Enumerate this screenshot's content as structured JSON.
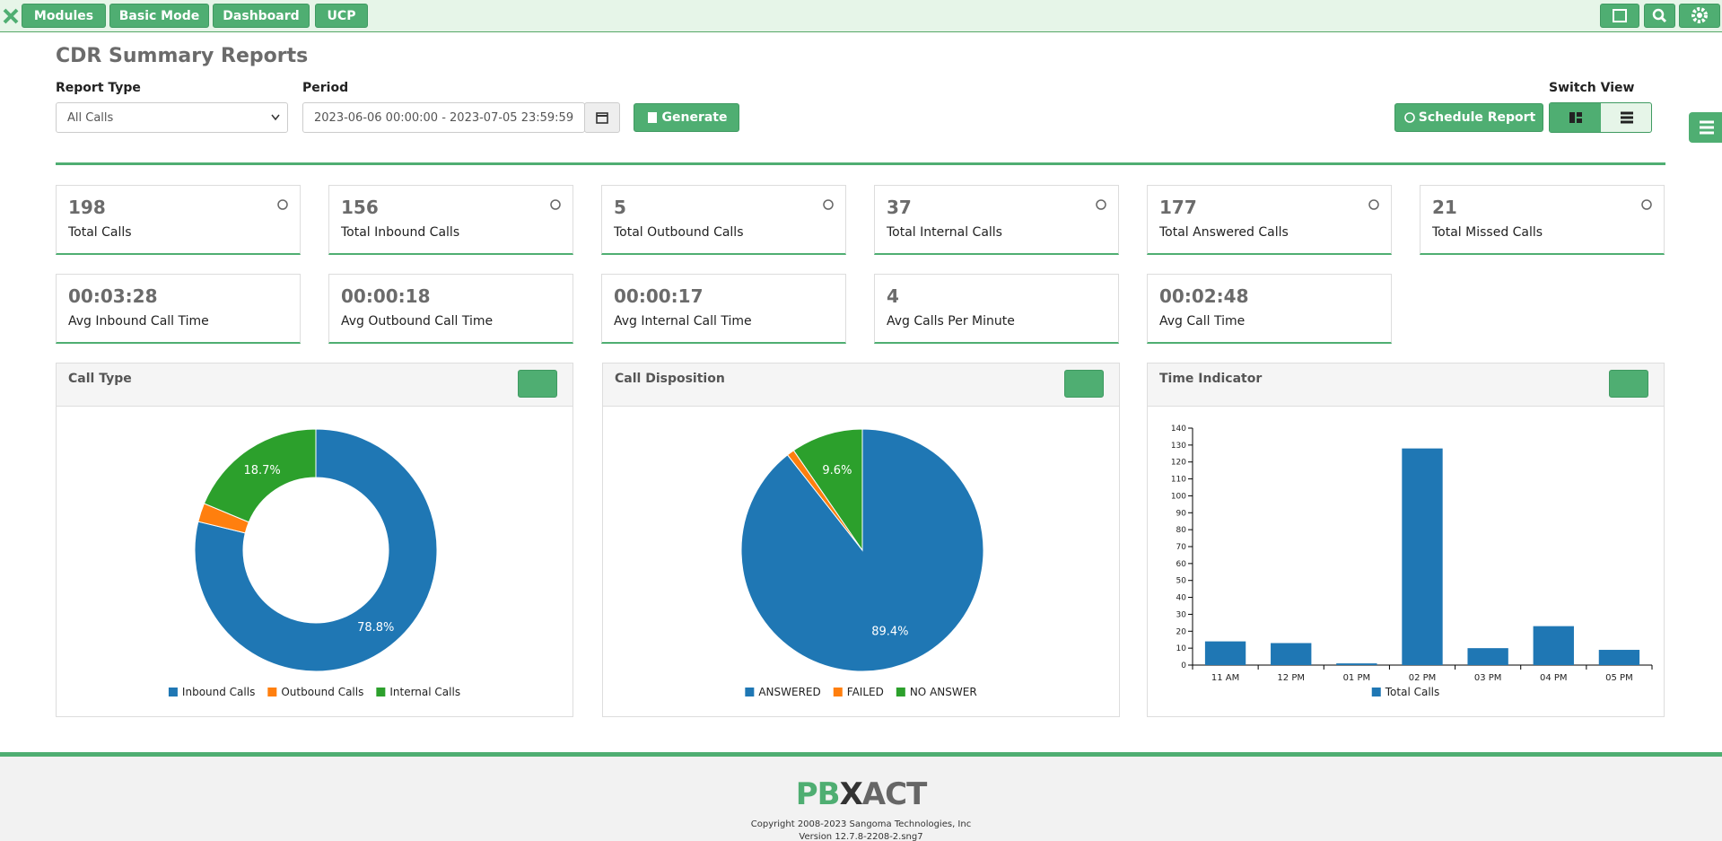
{
  "nav": {
    "buttons": [
      "Modules",
      "Basic Mode",
      "Dashboard",
      "UCP"
    ]
  },
  "header": {
    "title": "CDR Summary Reports"
  },
  "form": {
    "report_type_label": "Report Type",
    "report_type": "All Calls",
    "period_label": "Period",
    "period": "2023-06-06 00:00:00 - 2023-07-05 23:59:59",
    "generate": "Generate",
    "schedule": "Schedule Report",
    "switch_view": "Switch View"
  },
  "stats": [
    {
      "value": 198,
      "label": "Total Calls"
    },
    {
      "value": 156,
      "label": "Total Inbound Calls"
    },
    {
      "value": 5,
      "label": "Total Outbound Calls"
    },
    {
      "value": 37,
      "label": "Total Internal Calls"
    },
    {
      "value": 177,
      "label": "Total Answered Calls"
    },
    {
      "value": 21,
      "label": "Total Missed Calls"
    },
    {
      "value": "00:03:28",
      "label": "Avg Inbound Call Time"
    },
    {
      "value": "00:00:18",
      "label": "Avg Outbound Call Time"
    },
    {
      "value": "00:00:17",
      "label": "Avg Internal Call Time"
    },
    {
      "value": 4,
      "label": "Avg Calls Per Minute"
    },
    {
      "value": "00:02:48",
      "label": "Avg Call Time"
    }
  ],
  "charts": [
    {
      "type": "donut",
      "title": "Call Type",
      "categories": [
        "Inbound Calls",
        "Outbound Calls",
        "Internal Calls"
      ],
      "values": [
        78.8,
        2.5,
        18.7
      ],
      "value_labels": [
        "78.8%",
        null,
        "18.7%"
      ],
      "colors": [
        "#1f77b4",
        "#ff7f0e",
        "#2ca02c"
      ]
    },
    {
      "type": "pie",
      "title": "Call Disposition",
      "categories": [
        "ANSWERED",
        "FAILED",
        "NO ANSWER"
      ],
      "values": [
        89.4,
        1.0,
        9.6
      ],
      "value_labels": [
        "89.4%",
        null,
        "9.6%"
      ],
      "colors": [
        "#1f77b4",
        "#ff7f0e",
        "#2ca02c"
      ]
    },
    {
      "type": "bar",
      "title": "Time Indicator",
      "categories": [
        "11 AM",
        "12 PM",
        "01 PM",
        "02 PM",
        "03 PM",
        "04 PM",
        "05 PM"
      ],
      "series": [
        {
          "name": "Total Calls",
          "color": "#1f77b4",
          "values": [
            14,
            13,
            1,
            128,
            10,
            23,
            9
          ]
        }
      ],
      "ylim": [
        0,
        140
      ],
      "yticks": [
        0,
        10,
        20,
        30,
        40,
        50,
        60,
        70,
        80,
        90,
        100,
        110,
        120,
        130,
        140
      ]
    }
  ],
  "footer": {
    "logo_left": "PB",
    "logo_right": "ACT",
    "copyright": "Copyright 2008-2023 Sangoma Technologies, Inc",
    "version": "Version 12.7.8-2208-2.sng7"
  }
}
